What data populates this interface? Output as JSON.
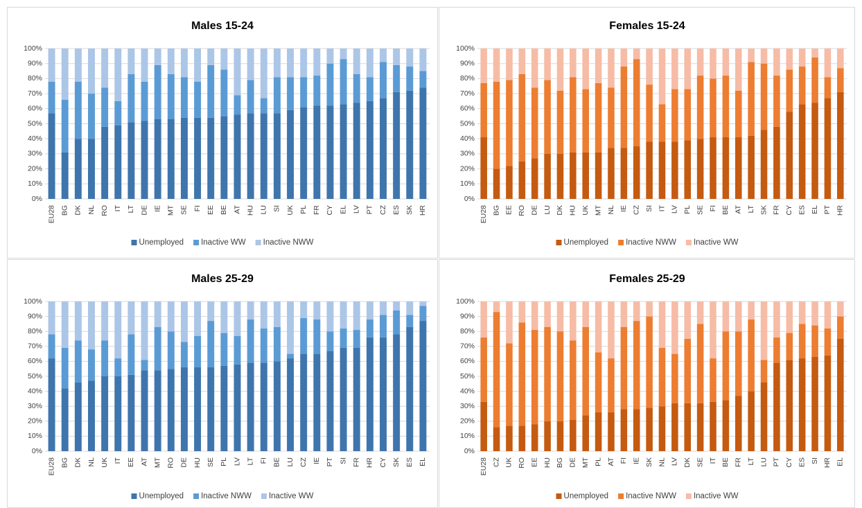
{
  "chart_data": [
    {
      "type": "bar",
      "stacked": true,
      "title": "Males 15-24",
      "categories": [
        "EU28",
        "BG",
        "DK",
        "NL",
        "RO",
        "IT",
        "LT",
        "DE",
        "IE",
        "MT",
        "SE",
        "FI",
        "EE",
        "BE",
        "AT",
        "HU",
        "LU",
        "SI",
        "UK",
        "PL",
        "FR",
        "CY",
        "EL",
        "LV",
        "PT",
        "CZ",
        "ES",
        "SK",
        "HR"
      ],
      "series": [
        {
          "name": "Unemployed",
          "color": "#3f75ad",
          "values": [
            57,
            31,
            40,
            40,
            48,
            49,
            51,
            52,
            53,
            53,
            54,
            54,
            54,
            55,
            56,
            57,
            57,
            57,
            59,
            61,
            62,
            62,
            63,
            64,
            65,
            67,
            71,
            72,
            74
          ]
        },
        {
          "name": "Inactive WW",
          "color": "#5b9bd5",
          "values": [
            21,
            35,
            38,
            30,
            26,
            16,
            32,
            26,
            36,
            30,
            27,
            24,
            35,
            31,
            13,
            22,
            10,
            24,
            22,
            20,
            20,
            28,
            30,
            19,
            16,
            24,
            18,
            16,
            11
          ]
        },
        {
          "name": "Inactive NWW",
          "color": "#acc6e7",
          "values": [
            22,
            34,
            22,
            30,
            26,
            35,
            17,
            22,
            11,
            17,
            19,
            22,
            11,
            14,
            31,
            21,
            33,
            19,
            19,
            19,
            18,
            10,
            7,
            17,
            19,
            9,
            11,
            12,
            15
          ]
        }
      ],
      "ylim": [
        0,
        100
      ],
      "yticks": [
        {
          "value": 0,
          "label": "0%"
        },
        {
          "value": 10,
          "label": "10%"
        },
        {
          "value": 20,
          "label": "20%"
        },
        {
          "value": 30,
          "label": "30%"
        },
        {
          "value": 40,
          "label": "40%"
        },
        {
          "value": 50,
          "label": "50%"
        },
        {
          "value": 60,
          "label": "60%"
        },
        {
          "value": 70,
          "label": "70%"
        },
        {
          "value": 80,
          "label": "80%"
        },
        {
          "value": 90,
          "label": "90%"
        },
        {
          "value": 100,
          "label": "100%"
        }
      ],
      "grid": true,
      "legend": "bottom"
    },
    {
      "type": "bar",
      "stacked": true,
      "title": "Females 15-24",
      "categories": [
        "EU28",
        "BG",
        "EE",
        "RO",
        "DE",
        "LU",
        "DK",
        "HU",
        "UK",
        "MT",
        "NL",
        "IE",
        "CZ",
        "SI",
        "IT",
        "LV",
        "PL",
        "SE",
        "FI",
        "BE",
        "AT",
        "LT",
        "SK",
        "FR",
        "CY",
        "ES",
        "EL",
        "PT",
        "HR"
      ],
      "series": [
        {
          "name": "Unemployed",
          "color": "#c55a11",
          "values": [
            41,
            20,
            22,
            25,
            27,
            30,
            30,
            31,
            31,
            31,
            34,
            34,
            35,
            38,
            38,
            38,
            39,
            40,
            41,
            41,
            41,
            42,
            46,
            48,
            58,
            63,
            64,
            67,
            71
          ]
        },
        {
          "name": "Inactive NWW",
          "color": "#ed7d31",
          "values": [
            36,
            58,
            57,
            58,
            47,
            49,
            42,
            50,
            42,
            46,
            40,
            54,
            58,
            38,
            25,
            35,
            34,
            42,
            39,
            41,
            31,
            49,
            44,
            34,
            28,
            25,
            30,
            14,
            16
          ]
        },
        {
          "name": "Inactive WW",
          "color": "#f6bca6",
          "values": [
            23,
            22,
            21,
            17,
            26,
            21,
            28,
            19,
            27,
            23,
            26,
            12,
            7,
            24,
            37,
            27,
            27,
            18,
            20,
            18,
            28,
            9,
            10,
            18,
            14,
            12,
            6,
            19,
            13
          ]
        }
      ],
      "ylim": [
        0,
        100
      ],
      "yticks": [
        {
          "value": 0,
          "label": "0%"
        },
        {
          "value": 10,
          "label": "10%"
        },
        {
          "value": 20,
          "label": "20%"
        },
        {
          "value": 30,
          "label": "30%"
        },
        {
          "value": 40,
          "label": "40%"
        },
        {
          "value": 50,
          "label": "50%"
        },
        {
          "value": 60,
          "label": "60%"
        },
        {
          "value": 70,
          "label": "70%"
        },
        {
          "value": 80,
          "label": "80%"
        },
        {
          "value": 90,
          "label": "90%"
        },
        {
          "value": 100,
          "label": "100%"
        }
      ],
      "grid": true,
      "legend": "bottom"
    },
    {
      "type": "bar",
      "stacked": true,
      "title": "Males 25-29",
      "categories": [
        "EU28",
        "BG",
        "DK",
        "NL",
        "UK",
        "IT",
        "EE",
        "AT",
        "MT",
        "RO",
        "DE",
        "HU",
        "SE",
        "PL",
        "LV",
        "LT",
        "FI",
        "BE",
        "LU",
        "CZ",
        "IE",
        "PT",
        "SI",
        "FR",
        "HR",
        "CY",
        "SK",
        "ES",
        "EL"
      ],
      "series": [
        {
          "name": "Unemployed",
          "color": "#3f75ad",
          "values": [
            62,
            42,
            46,
            47,
            50,
            50,
            51,
            54,
            54,
            55,
            56,
            56,
            56,
            57,
            58,
            59,
            59,
            60,
            62,
            65,
            65,
            67,
            69,
            69,
            76,
            76,
            78,
            83,
            87
          ]
        },
        {
          "name": "Inactive NWW",
          "color": "#5b9bd5",
          "values": [
            16,
            27,
            28,
            21,
            24,
            12,
            27,
            7,
            29,
            25,
            17,
            21,
            31,
            22,
            19,
            29,
            23,
            23,
            3,
            24,
            23,
            13,
            13,
            12,
            12,
            15,
            16,
            8,
            10
          ]
        },
        {
          "name": "Inactive WW",
          "color": "#acc6e7",
          "values": [
            22,
            31,
            26,
            32,
            26,
            38,
            22,
            39,
            17,
            20,
            27,
            23,
            13,
            21,
            23,
            12,
            18,
            17,
            35,
            11,
            12,
            20,
            18,
            19,
            12,
            9,
            6,
            9,
            3
          ]
        }
      ],
      "ylim": [
        0,
        100
      ],
      "yticks": [
        {
          "value": 0,
          "label": "0%"
        },
        {
          "value": 10,
          "label": "10%"
        },
        {
          "value": 20,
          "label": "20%"
        },
        {
          "value": 30,
          "label": "30%"
        },
        {
          "value": 40,
          "label": "40%"
        },
        {
          "value": 50,
          "label": "50%"
        },
        {
          "value": 60,
          "label": "60%"
        },
        {
          "value": 70,
          "label": "70%"
        },
        {
          "value": 80,
          "label": "80%"
        },
        {
          "value": 90,
          "label": "90%"
        },
        {
          "value": 100,
          "label": "100%"
        }
      ],
      "grid": true,
      "legend": "bottom"
    },
    {
      "type": "bar",
      "stacked": true,
      "title": "Females 25-29",
      "categories": [
        "EU28",
        "CZ",
        "UK",
        "RO",
        "EE",
        "HU",
        "BG",
        "DE",
        "MT",
        "PL",
        "AT",
        "FI",
        "IE",
        "SK",
        "NL",
        "LV",
        "DK",
        "SE",
        "IT",
        "BE",
        "FR",
        "LT",
        "LU",
        "PT",
        "CY",
        "ES",
        "SI",
        "HR",
        "EL"
      ],
      "series": [
        {
          "name": "Unemployed",
          "color": "#c55a11",
          "values": [
            33,
            16,
            17,
            17,
            18,
            20,
            20,
            21,
            24,
            26,
            26,
            28,
            28,
            29,
            30,
            32,
            32,
            32,
            33,
            34,
            37,
            40,
            46,
            59,
            61,
            62,
            63,
            64,
            75
          ]
        },
        {
          "name": "Inactive NWW",
          "color": "#ed7d31",
          "values": [
            43,
            77,
            55,
            69,
            63,
            63,
            60,
            53,
            59,
            40,
            36,
            55,
            59,
            61,
            39,
            33,
            43,
            53,
            29,
            46,
            43,
            48,
            15,
            17,
            18,
            23,
            21,
            18,
            15
          ]
        },
        {
          "name": "Inactive WW",
          "color": "#f6bca6",
          "values": [
            24,
            7,
            28,
            14,
            19,
            17,
            20,
            26,
            17,
            34,
            38,
            17,
            13,
            10,
            31,
            35,
            25,
            15,
            38,
            20,
            20,
            12,
            39,
            24,
            21,
            15,
            16,
            18,
            10
          ]
        }
      ],
      "ylim": [
        0,
        100
      ],
      "yticks": [
        {
          "value": 0,
          "label": "0%"
        },
        {
          "value": 10,
          "label": "10%"
        },
        {
          "value": 20,
          "label": "20%"
        },
        {
          "value": 30,
          "label": "30%"
        },
        {
          "value": 40,
          "label": "40%"
        },
        {
          "value": 50,
          "label": "50%"
        },
        {
          "value": 60,
          "label": "60%"
        },
        {
          "value": 70,
          "label": "70%"
        },
        {
          "value": 80,
          "label": "80%"
        },
        {
          "value": 90,
          "label": "90%"
        },
        {
          "value": 100,
          "label": "100%"
        }
      ],
      "grid": true,
      "legend": "bottom"
    }
  ]
}
